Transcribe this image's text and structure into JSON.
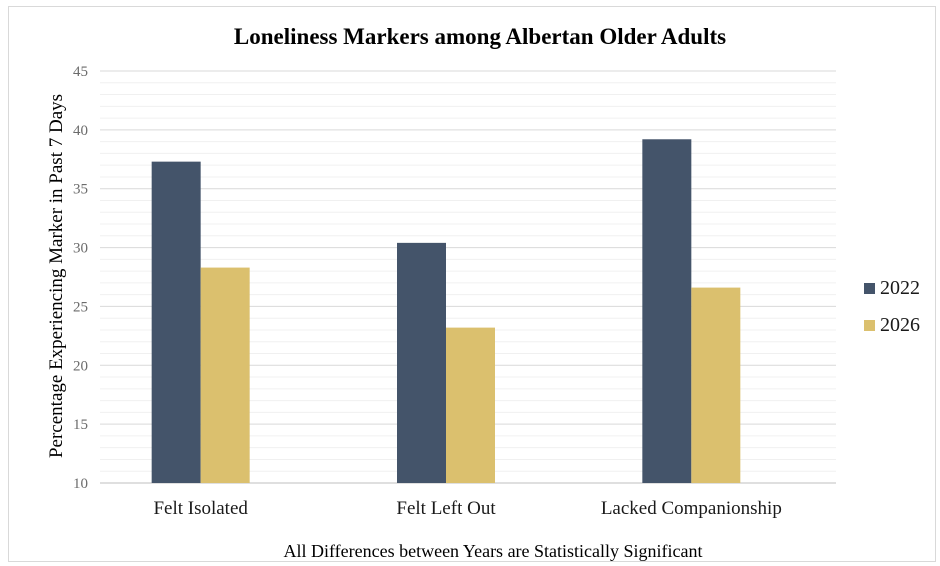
{
  "chart_data": {
    "type": "bar",
    "title": "Loneliness Markers among Albertan Older Adults",
    "xlabel": "All Differences between Years are Statistically Significant",
    "ylabel": "Percentage Experiencing Marker in Past 7 Days",
    "categories": [
      "Felt Isolated",
      "Felt Left Out",
      "Lacked Companionship"
    ],
    "series": [
      {
        "name": "2022",
        "color": "#44546a",
        "values": [
          37.3,
          30.4,
          39.2
        ]
      },
      {
        "name": "2026",
        "color": "#dbc06e",
        "values": [
          28.3,
          23.2,
          26.6
        ]
      }
    ],
    "ylim": [
      10,
      45
    ],
    "yticks": [
      10,
      15,
      20,
      25,
      30,
      35,
      40,
      45
    ],
    "grid": true,
    "legend_position": "right"
  }
}
